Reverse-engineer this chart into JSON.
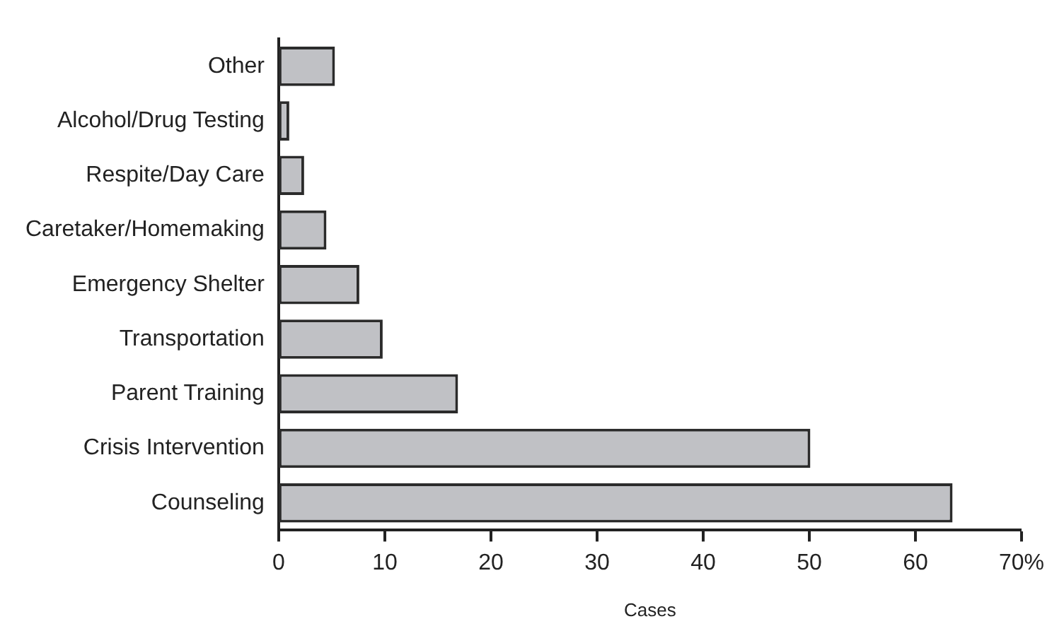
{
  "chart_data": {
    "type": "bar",
    "orientation": "horizontal",
    "xlabel": "Cases",
    "categories": [
      "Other",
      "Alcohol/Drug Testing",
      "Respite/Day Care",
      "Caretaker/Homemaking",
      "Emergency Shelter",
      "Transportation",
      "Parent Training",
      "Crisis Intervention",
      "Counseling"
    ],
    "values": [
      5.3,
      1.0,
      2.4,
      4.5,
      7.6,
      9.8,
      16.9,
      50.1,
      63.5
    ],
    "color": "#c0c1c5",
    "xlim": [
      0,
      70
    ],
    "xticks": [
      0,
      10,
      20,
      30,
      40,
      50,
      60,
      {
        "value": 70,
        "label": "70%"
      }
    ],
    "grid": false
  }
}
